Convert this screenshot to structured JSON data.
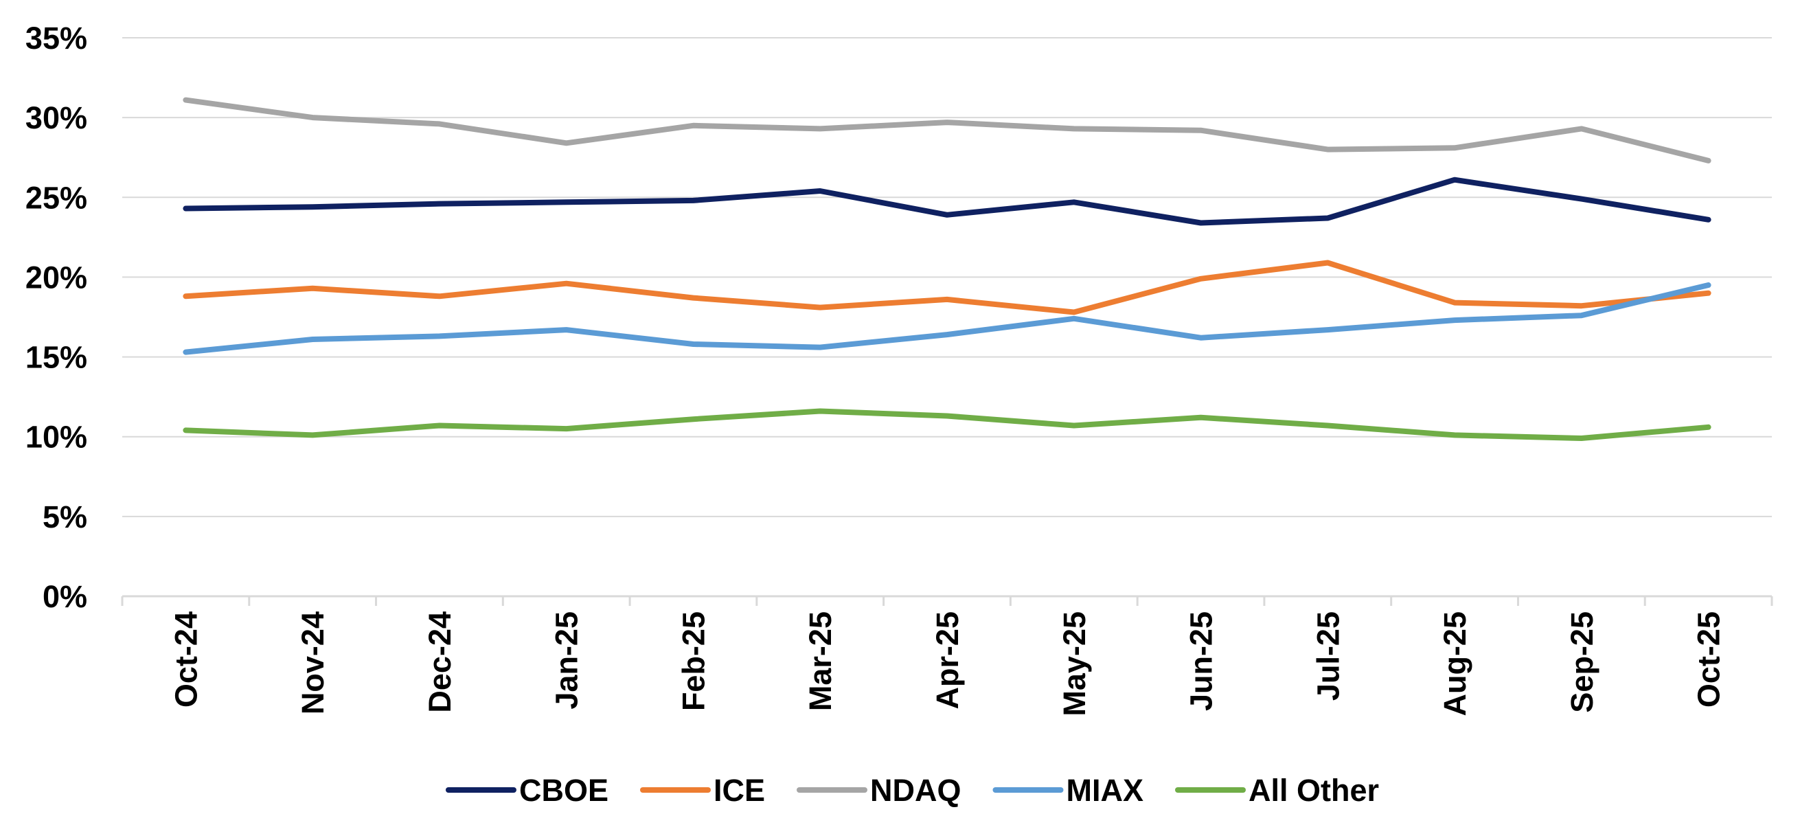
{
  "chart_data": {
    "type": "line",
    "title": "",
    "xlabel": "",
    "ylabel": "",
    "categories": [
      "Oct-24",
      "Nov-24",
      "Dec-24",
      "Jan-25",
      "Feb-25",
      "Mar-25",
      "Apr-25",
      "May-25",
      "Jun-25",
      "Jul-25",
      "Aug-25",
      "Sep-25",
      "Oct-25"
    ],
    "ylim": [
      0,
      35
    ],
    "yticks": [
      0,
      5,
      10,
      15,
      20,
      25,
      30,
      35
    ],
    "ytick_labels": [
      "0%",
      "5%",
      "10%",
      "15%",
      "20%",
      "25%",
      "30%",
      "35%"
    ],
    "grid": true,
    "legend_position": "bottom",
    "series": [
      {
        "name": "CBOE",
        "color": "#0f2161",
        "values": [
          24.3,
          24.4,
          24.6,
          24.7,
          24.8,
          25.4,
          23.9,
          24.7,
          23.4,
          23.7,
          26.1,
          24.9,
          23.6
        ]
      },
      {
        "name": "ICE",
        "color": "#ed7d31",
        "values": [
          18.8,
          19.3,
          18.8,
          19.6,
          18.7,
          18.1,
          18.6,
          17.8,
          19.9,
          20.9,
          18.4,
          18.2,
          19.0
        ]
      },
      {
        "name": "NDAQ",
        "color": "#a5a5a5",
        "values": [
          31.1,
          30.0,
          29.6,
          28.4,
          29.5,
          29.3,
          29.7,
          29.3,
          29.2,
          28.0,
          28.1,
          29.3,
          27.3
        ]
      },
      {
        "name": "MIAX",
        "color": "#5b9bd5",
        "values": [
          15.3,
          16.1,
          16.3,
          16.7,
          15.8,
          15.6,
          16.4,
          17.4,
          16.2,
          16.7,
          17.3,
          17.6,
          19.5
        ]
      },
      {
        "name": "All Other",
        "color": "#70ad47",
        "values": [
          10.4,
          10.1,
          10.7,
          10.5,
          11.1,
          11.6,
          11.3,
          10.7,
          11.2,
          10.7,
          10.1,
          9.9,
          10.6
        ]
      }
    ]
  }
}
